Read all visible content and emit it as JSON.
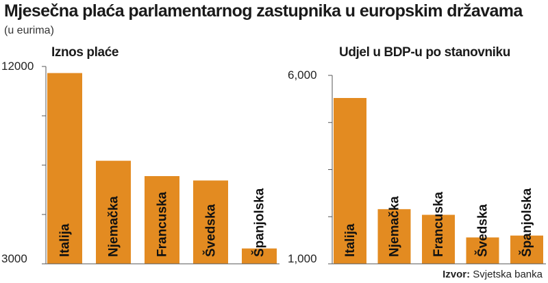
{
  "title": "Mjesečna plaća parlamentarnog zastupnika u europskim državama",
  "subtitle": "(u eurima)",
  "source": {
    "label": "Izvor:",
    "text": "Svjetska banka"
  },
  "colors": {
    "bar": "#e38b21",
    "axis": "#555555",
    "label": "#111111"
  },
  "chart_data": [
    {
      "type": "bar",
      "title": "Iznos plaće",
      "categories": [
        "Italija",
        "Njemačka",
        "Francuska",
        "Švedska",
        "Španjolska"
      ],
      "values": [
        11700,
        7700,
        7000,
        6800,
        3700
      ],
      "ylim": [
        3000,
        12000
      ],
      "yticks": [
        3000,
        12000
      ],
      "ytick_labels": [
        "3000",
        "12000"
      ],
      "xlabel": "",
      "ylabel": ""
    },
    {
      "type": "bar",
      "title": "Udjel u BDP-u po stanovniku",
      "categories": [
        "Italija",
        "Njemačka",
        "Francuska",
        "Švedska",
        "Španjolska"
      ],
      "values": [
        5400,
        2450,
        2300,
        1700,
        1750
      ],
      "ylim": [
        1000,
        6000
      ],
      "yticks": [
        1000,
        6000
      ],
      "ytick_labels": [
        "1,000",
        "6,000"
      ],
      "xlabel": "",
      "ylabel": ""
    }
  ]
}
